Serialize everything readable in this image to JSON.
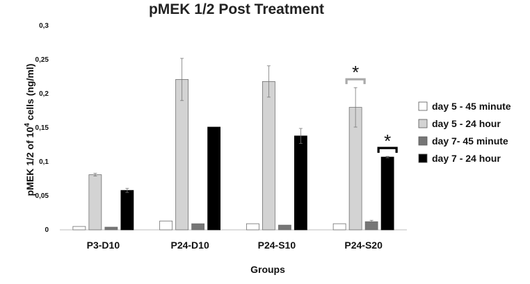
{
  "chart_data": {
    "type": "bar",
    "title": "pMEK 1/2 Post Treatment",
    "xlabel": "Groups",
    "ylabel_main": "pMEK 1/2 of 10",
    "ylabel_sup": "4",
    "ylabel_tail": " cells (ng/ml)",
    "ylim": [
      0,
      0.3
    ],
    "yticks": [
      "0",
      "0,05",
      "0,1",
      "0,15",
      "0,2",
      "0,25",
      "0,3"
    ],
    "categories": [
      "P3-D10",
      "P24-D10",
      "P24-S10",
      "P24-S20"
    ],
    "series": [
      {
        "name": "day 5 - 45 minute",
        "color": "#ffffff",
        "values": [
          0.005,
          0.013,
          0.009,
          0.009
        ],
        "errors": [
          0,
          0,
          0,
          0
        ]
      },
      {
        "name": "day 5 - 24 hour",
        "color": "#d3d3d3",
        "values": [
          0.081,
          0.221,
          0.218,
          0.18
        ],
        "errors": [
          0.002,
          0.031,
          0.023,
          0.029
        ]
      },
      {
        "name": "day 7- 45 minute",
        "color": "#767676",
        "values": [
          0.004,
          0.009,
          0.007,
          0.012
        ],
        "errors": [
          0,
          0,
          0,
          0.002
        ]
      },
      {
        "name": "day 7 - 24 hour",
        "color": "#000000",
        "values": [
          0.058,
          0.151,
          0.138,
          0.107
        ],
        "errors": [
          0.003,
          0,
          0.011,
          0.001
        ]
      }
    ],
    "significance": [
      {
        "category": "P24-S20",
        "series": "day 5 - 24 hour",
        "label": "*",
        "bracket_color": "#aaaaaa"
      },
      {
        "category": "P24-S20",
        "series": "day 7 - 24 hour",
        "label": "*",
        "bracket_color": "#000000"
      }
    ],
    "legend_position": "right",
    "grid": false
  }
}
